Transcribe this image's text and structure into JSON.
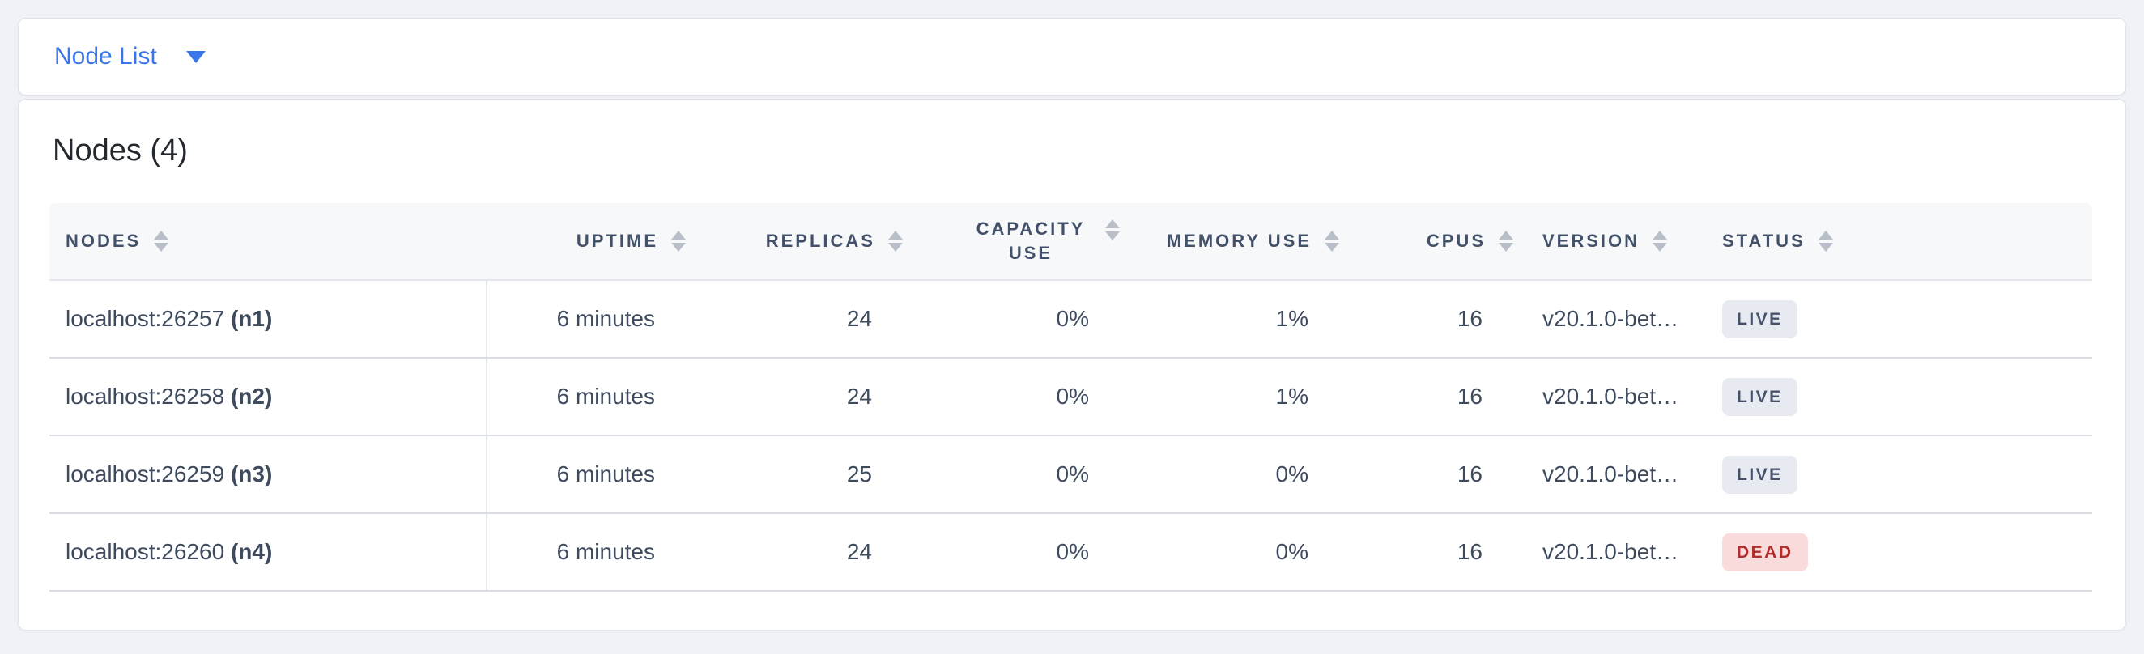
{
  "toolbar": {
    "dropdown": {
      "label": "Node List"
    }
  },
  "panel": {
    "title": "Nodes (4)",
    "table": {
      "columns": [
        {
          "key": "nodes",
          "label": "NODES",
          "align": "left"
        },
        {
          "key": "uptime",
          "label": "UPTIME",
          "align": "right"
        },
        {
          "key": "replicas",
          "label": "REPLICAS",
          "align": "right"
        },
        {
          "key": "capacity_use",
          "label": "CAPACITY USE",
          "align": "right",
          "wrap": true
        },
        {
          "key": "memory_use",
          "label": "MEMORY USE",
          "align": "right"
        },
        {
          "key": "cpus",
          "label": "CPUS",
          "align": "right"
        },
        {
          "key": "version",
          "label": "VERSION",
          "align": "left"
        },
        {
          "key": "status",
          "label": "STATUS",
          "align": "left"
        }
      ],
      "rows": [
        {
          "address": "localhost:26257",
          "id": "(n1)",
          "uptime": "6 minutes",
          "replicas": "24",
          "capacity_use": "0%",
          "memory_use": "1%",
          "cpus": "16",
          "version": "v20.1.0-bet…",
          "status": "LIVE"
        },
        {
          "address": "localhost:26258",
          "id": "(n2)",
          "uptime": "6 minutes",
          "replicas": "24",
          "capacity_use": "0%",
          "memory_use": "1%",
          "cpus": "16",
          "version": "v20.1.0-bet…",
          "status": "LIVE"
        },
        {
          "address": "localhost:26259",
          "id": "(n3)",
          "uptime": "6 minutes",
          "replicas": "25",
          "capacity_use": "0%",
          "memory_use": "0%",
          "cpus": "16",
          "version": "v20.1.0-bet…",
          "status": "LIVE"
        },
        {
          "address": "localhost:26260",
          "id": "(n4)",
          "uptime": "6 minutes",
          "replicas": "24",
          "capacity_use": "0%",
          "memory_use": "0%",
          "cpus": "16",
          "version": "v20.1.0-bet…",
          "status": "DEAD"
        }
      ]
    }
  },
  "colors": {
    "accent_blue": "#3a76e8",
    "status_live_bg": "#e7eaf1",
    "status_live_text": "#45516a",
    "status_dead_bg": "#fadbdb",
    "status_dead_text": "#b02e2e"
  }
}
